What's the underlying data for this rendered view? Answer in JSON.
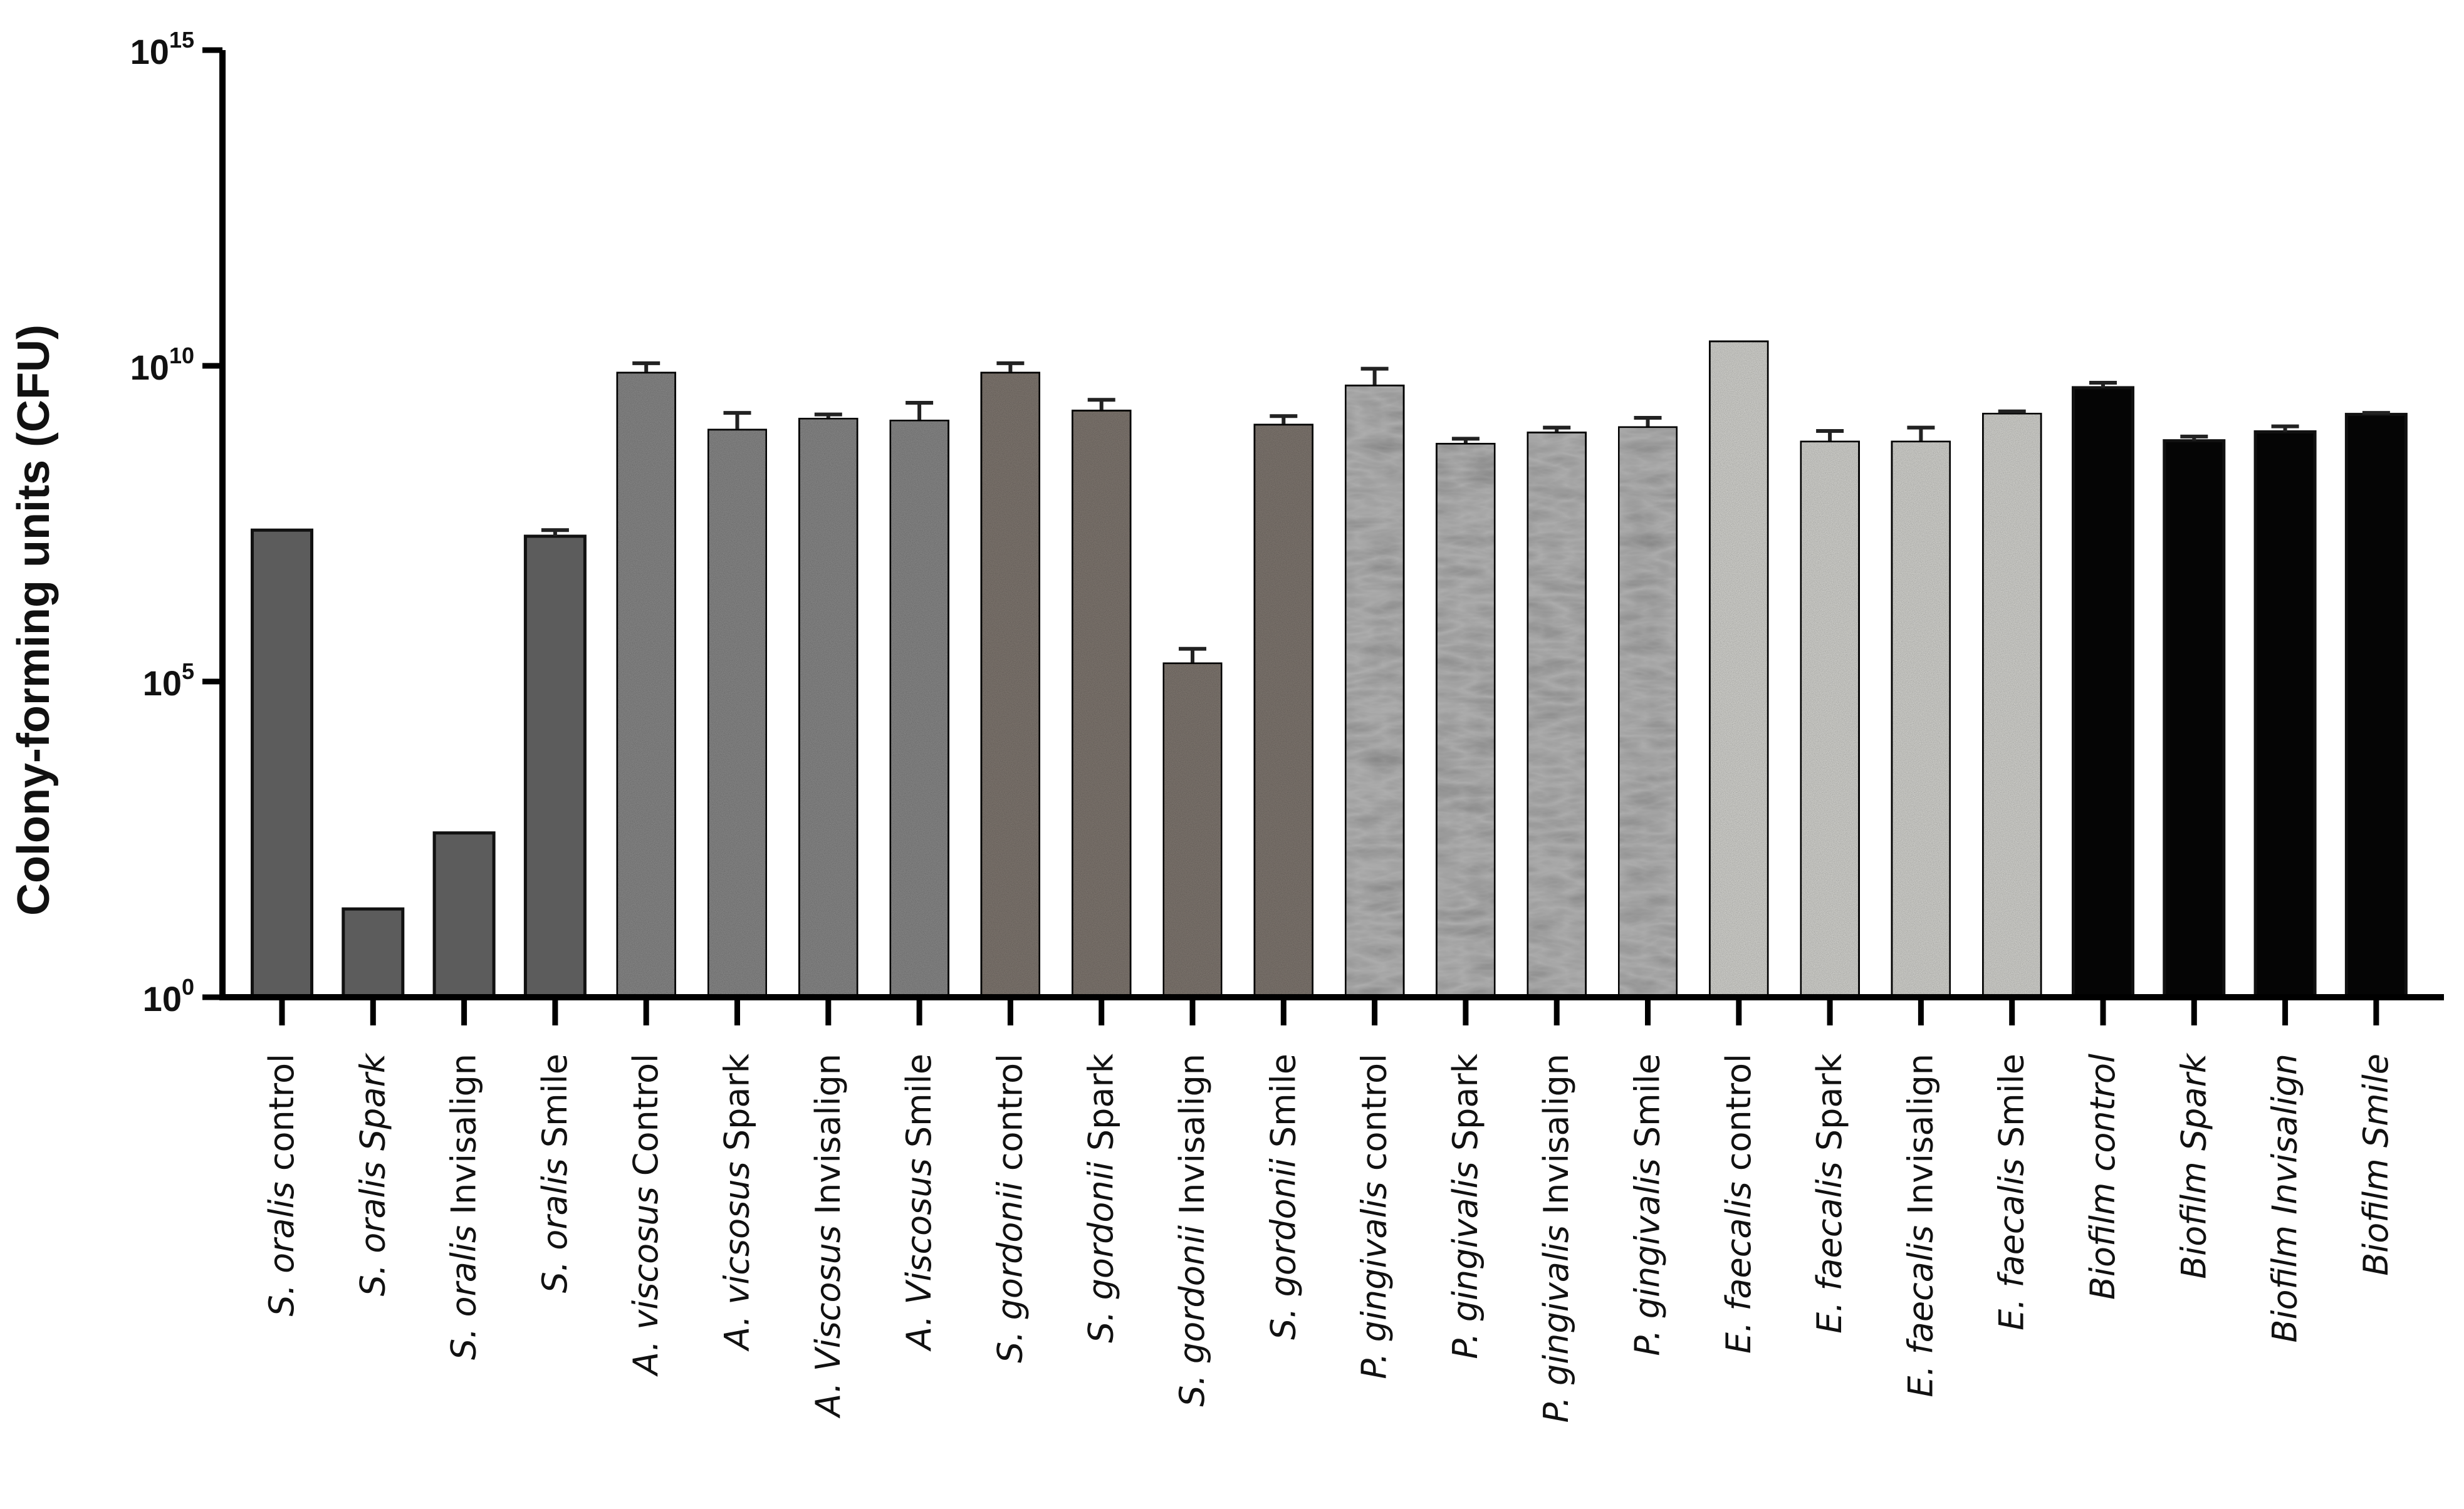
{
  "chart_data": {
    "type": "bar",
    "ylabel": "Colony-forming units (CFU)",
    "yscale": "log",
    "ylim": [
      1,
      1000000000000000.0
    ],
    "yticks": [
      {
        "value": 1,
        "base": "10",
        "exp": "0"
      },
      {
        "value": 100000,
        "base": "10",
        "exp": "5"
      },
      {
        "value": 10000000000,
        "base": "10",
        "exp": "10"
      },
      {
        "value": 1000000000000000.0,
        "base": "10",
        "exp": "15"
      }
    ],
    "categories": [
      {
        "italic": "S. oralis",
        "rest": " control"
      },
      {
        "italic": "S. oralis Spark",
        "rest": ""
      },
      {
        "italic": "S. oralis",
        "rest": " Invisalign"
      },
      {
        "italic": "S. oralis",
        "rest": " Smile"
      },
      {
        "italic": "A.  viscosus",
        "rest": " Control"
      },
      {
        "italic": "A.   vicsosus",
        "rest": " Spark"
      },
      {
        "italic": "A. Viscosus",
        "rest": " Invisalign"
      },
      {
        "italic": "A.   Viscosus",
        "rest": " Smile"
      },
      {
        "italic": "S. gordonii",
        "rest": " control"
      },
      {
        "italic": "S. gordonii",
        "rest": "  Spark"
      },
      {
        "italic": "S. gordonii",
        "rest": " Invisalign"
      },
      {
        "italic": "S. gordonii",
        "rest": " Smile"
      },
      {
        "italic": "P. gingivalis",
        "rest": " control"
      },
      {
        "italic": "P. gingivalis",
        "rest": " Spark"
      },
      {
        "italic": "P. gingivalis",
        "rest": " Invisalign"
      },
      {
        "italic": "P. gingivalis",
        "rest": " Smile"
      },
      {
        "italic": "E. faecalis",
        "rest": " control"
      },
      {
        "italic": "E. faecalis",
        "rest": " Spark"
      },
      {
        "italic": "E. faecalis",
        "rest": " Invisalign"
      },
      {
        "italic": "E. faecalis",
        "rest": " Smile"
      },
      {
        "italic": "Biofilm control",
        "rest": ""
      },
      {
        "italic": "Biofilm Spark",
        "rest": ""
      },
      {
        "italic": "Biofilm Invisalign",
        "rest": ""
      },
      {
        "italic": "Biofilm Smile",
        "rest": ""
      }
    ],
    "values": [
      25000000.0,
      25,
      400,
      20000000.0,
      8000000000.0,
      1000000000.0,
      1500000000.0,
      1400000000.0,
      8000000000.0,
      2000000000.0,
      200000.0,
      1200000000.0,
      5000000000.0,
      600000000.0,
      900000000.0,
      1100000000.0,
      25000000000.0,
      650000000.0,
      650000000.0,
      1800000000.0,
      4500000000.0,
      650000000.0,
      900000000.0,
      1700000000.0
    ],
    "error_tops": [
      null,
      null,
      null,
      25000000.0,
      11000000000.0,
      1800000000.0,
      1700000000.0,
      2600000000.0,
      11000000000.0,
      2900000000.0,
      330000.0,
      1600000000.0,
      9000000000.0,
      700000000.0,
      1050000000.0,
      1500000000.0,
      null,
      930000000.0,
      1050000000.0,
      1900000000.0,
      5400000000.0,
      760000000.0,
      1100000000.0,
      1800000000.0
    ],
    "fills": [
      "#5c5c5c",
      "#5c5c5c",
      "#5c5c5c",
      "#5c5c5c",
      "#8d8d8d",
      "#8d8d8d",
      "#8d8d8d",
      "#8d8d8d",
      "#847b74",
      "#847b74",
      "#847b74",
      "#847b74",
      "#adadad",
      "#adadad",
      "#adadad",
      "#adadad",
      "#dadad6",
      "#dadad6",
      "#dadad6",
      "#dadad6",
      "#050505",
      "#050505",
      "#050505",
      "#050505"
    ],
    "textures": [
      "solid",
      "solid",
      "solid",
      "solid",
      "grain",
      "grain",
      "grain",
      "grain",
      "grain",
      "grain",
      "grain",
      "grain",
      "marble",
      "marble",
      "marble",
      "marble",
      "grain",
      "grain",
      "grain",
      "grain",
      "solid",
      "solid",
      "solid",
      "solid"
    ],
    "grid": false,
    "legend": "none"
  }
}
